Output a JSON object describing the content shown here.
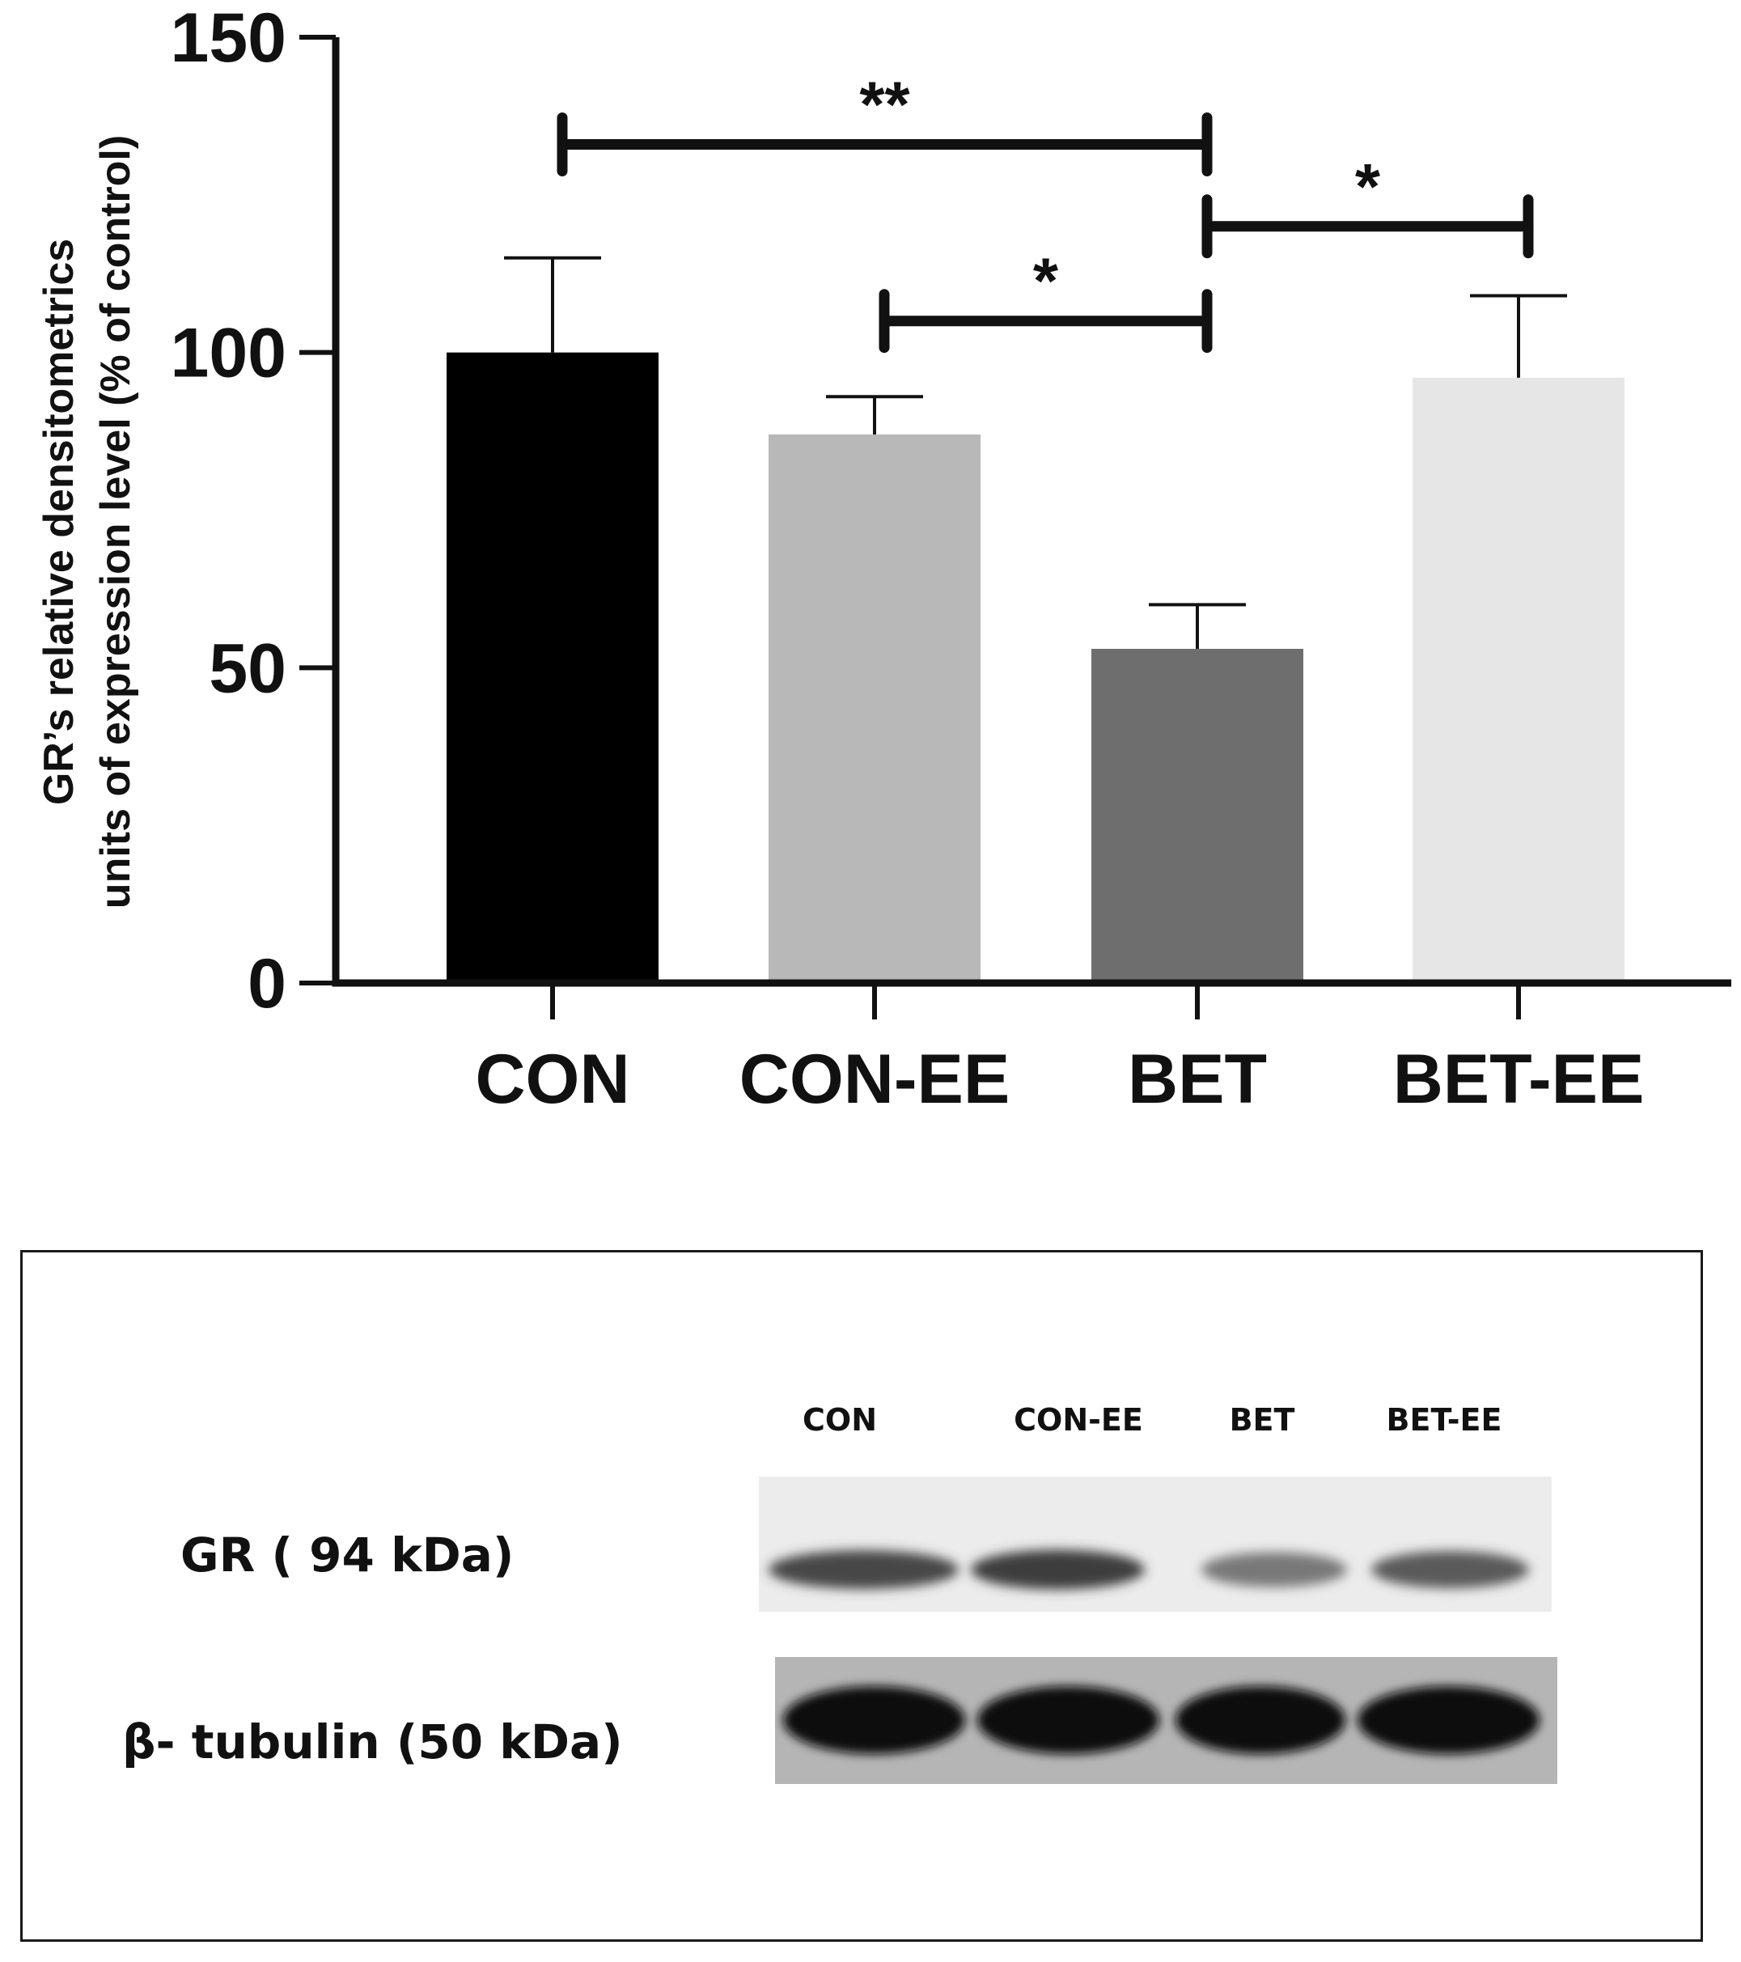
{
  "chart_data": {
    "type": "bar",
    "title": "",
    "xlabel": "",
    "ylabel_lines": [
      "GR’s relative densitometrics",
      "units of expression level (% of control)"
    ],
    "categories": [
      "CON",
      "CON-EE",
      "BET",
      "BET-EE"
    ],
    "values": [
      100,
      87,
      53,
      96
    ],
    "errors": [
      15,
      6,
      7,
      13
    ],
    "colors": [
      "#000000",
      "#b8b8b8",
      "#6e6e6e",
      "#e6e6e6"
    ],
    "ylim": [
      0,
      150
    ],
    "yticks": [
      0,
      50,
      100,
      150
    ],
    "grid": false,
    "legend": "none",
    "significance": [
      {
        "from": 0,
        "to": 2,
        "label": "**",
        "level": 133
      },
      {
        "from": 2,
        "to": 3,
        "label": "*",
        "level": 120
      },
      {
        "from": 1,
        "to": 2,
        "label": "*",
        "level": 105
      }
    ]
  },
  "blot": {
    "lanes": [
      "CON",
      "CON-EE",
      "BET",
      "BET-EE"
    ],
    "rows": [
      {
        "label": "GR  ( 94 kDa)",
        "band_intensity": [
          0.8,
          0.85,
          0.55,
          0.7
        ]
      },
      {
        "label": "β- tubulin  (50 kDa)",
        "band_intensity": [
          1,
          1,
          1,
          1
        ]
      }
    ]
  }
}
